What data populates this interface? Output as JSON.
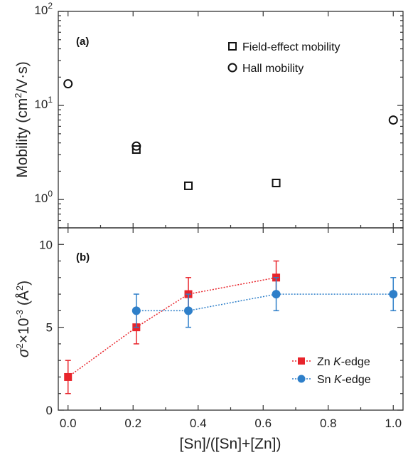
{
  "chart_data": [
    {
      "type": "scatter",
      "panel_label": "(a)",
      "ylabel_main": "Mobility (cm",
      "ylabel_sup": "2",
      "ylabel_tail": "/V·s)",
      "y_scale": "log",
      "ylim": [
        0.5,
        100
      ],
      "xlim": [
        -0.03,
        1.03
      ],
      "y_ticks": [
        {
          "value": 1,
          "base": "10",
          "exp": "0"
        },
        {
          "value": 10,
          "base": "10",
          "exp": "1"
        },
        {
          "value": 100,
          "base": "10",
          "exp": "2"
        }
      ],
      "legend_position": "top-right",
      "series": [
        {
          "name": "Field-effect mobility",
          "marker": "square",
          "x": [
            0.21,
            0.37,
            0.64
          ],
          "y": [
            3.4,
            1.4,
            1.5
          ]
        },
        {
          "name": "Hall mobility",
          "marker": "circle",
          "x": [
            0.0,
            0.21,
            1.0
          ],
          "y": [
            17,
            3.7,
            7
          ]
        }
      ]
    },
    {
      "type": "line",
      "panel_label": "(b)",
      "ylabel_a": "σ",
      "ylabel_b": "2",
      "ylabel_c": "×10",
      "ylabel_d": "-3",
      "ylabel_e": " (Å",
      "ylabel_f": "2",
      "ylabel_g": ")",
      "xlabel": "[Sn]/([Sn]+[Zn])",
      "xlim": [
        -0.03,
        1.03
      ],
      "ylim": [
        0,
        11
      ],
      "x_ticks": [
        "0.0",
        "0.2",
        "0.4",
        "0.6",
        "0.8",
        "1.0"
      ],
      "y_ticks": [
        "0",
        "5",
        "10"
      ],
      "legend_position": "bottom-right",
      "series": [
        {
          "name_base": "Zn ",
          "name_k": "K",
          "name_tail": "-edge",
          "color": "#e8242b",
          "marker": "square",
          "linestyle": "dotted",
          "x": [
            0.0,
            0.21,
            0.37,
            0.64
          ],
          "y": [
            2,
            5,
            7,
            8
          ],
          "error": [
            1,
            1,
            1,
            1
          ]
        },
        {
          "name_base": "Sn ",
          "name_k": "K",
          "name_tail": "-edge",
          "color": "#2e7fc9",
          "marker": "circle",
          "linestyle": "dotted",
          "x": [
            0.21,
            0.37,
            0.64,
            1.0
          ],
          "y": [
            6,
            6,
            7,
            7
          ],
          "error": [
            1,
            1,
            1,
            1
          ]
        }
      ]
    }
  ]
}
